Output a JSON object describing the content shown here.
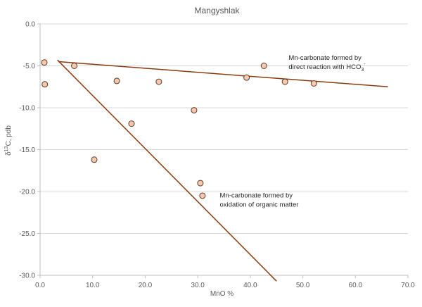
{
  "chart_data": {
    "type": "scatter",
    "title": "Mangyshlak",
    "xlabel": "MnO %",
    "ylabel_parts": [
      "δ",
      "13",
      "C, pdb"
    ],
    "xlim": [
      0,
      70
    ],
    "ylim": [
      -30,
      0
    ],
    "xticks": [
      0,
      10,
      20,
      30,
      40,
      50,
      60,
      70
    ],
    "xtick_labels": [
      "0.0",
      "10.0",
      "20.0",
      "30.0",
      "40.0",
      "50.0",
      "60.0",
      "70.0"
    ],
    "yticks": [
      0,
      -5,
      -10,
      -15,
      -20,
      -25,
      -30
    ],
    "ytick_labels": [
      "0.0",
      "-5.0",
      "-10.0",
      "-15.0",
      "-20.0",
      "-25.0",
      "-30.0"
    ],
    "grid": "horizontal",
    "points": {
      "x": [
        0.8,
        0.9,
        6.5,
        10.3,
        14.6,
        17.4,
        22.6,
        29.3,
        30.5,
        30.9,
        39.3,
        42.6,
        46.6,
        52.1
      ],
      "y": [
        -4.6,
        -7.2,
        -5.0,
        -16.2,
        -6.8,
        -11.9,
        -6.9,
        -10.3,
        -19.0,
        -20.5,
        -6.4,
        -5.0,
        -6.9,
        -7.1
      ]
    },
    "point_color": "#f6c8b0",
    "point_edge_color": "#5a3a22",
    "trend_lines": [
      {
        "x": [
          3.5,
          66.2
        ],
        "y": [
          -4.5,
          -7.5
        ],
        "color": "#8b3a0f"
      },
      {
        "x": [
          3.3,
          45.0
        ],
        "y": [
          -4.3,
          -30.7
        ],
        "color": "#8b3a0f"
      }
    ],
    "annotations": [
      {
        "lines": [
          "Mn-carbonate formed by",
          "direct reaction with HCO"
        ],
        "subscript": "3",
        "superscript": "-",
        "x": 47.3,
        "y": -4.3
      },
      {
        "lines": [
          "Mn-carbonate formed by",
          "oxidation of organic matter"
        ],
        "x": 34.2,
        "y": -20.7
      }
    ]
  }
}
